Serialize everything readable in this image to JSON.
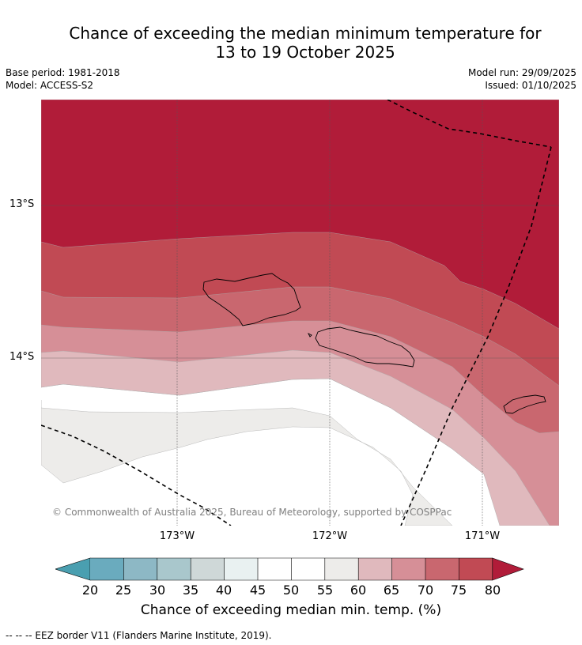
{
  "title": {
    "line1": "Chance of exceeding the median minimum temperature for",
    "line2": "13 to 19 October 2025"
  },
  "meta": {
    "base_period": "Base period: 1981-2018",
    "model": "Model: ACCESS-S2",
    "model_run": "Model run: 29/09/2025",
    "issued": "Issued: 01/10/2025"
  },
  "map": {
    "copyright": "© Commonwealth of Australia 2025, Bureau of Meteorology, supported by COSPPac",
    "lat_labels": [
      "13°S",
      "14°S"
    ],
    "lon_labels": [
      "173°W",
      "172°W",
      "171°W"
    ]
  },
  "colorbar": {
    "ticks": [
      "20",
      "25",
      "30",
      "35",
      "40",
      "45",
      "50",
      "55",
      "60",
      "65",
      "70",
      "75",
      "80"
    ],
    "label": "Chance of exceeding median min. temp. (%)",
    "colors": {
      "under": "#4a9fb0",
      "c20_25": "#6aabbe",
      "c25_30": "#8db8c5",
      "c30_35": "#a9c7cc",
      "c35_40": "#cfd8d8",
      "c40_45": "#e9f1f1",
      "c45_55": "#ffffff",
      "c55_60": "#edecea",
      "c60_65": "#e0b9bd",
      "c65_70": "#d68f97",
      "c70_75": "#c9676f",
      "c75_80": "#c14a54",
      "over": "#b11c39"
    }
  },
  "legend": "--  --  -- EEZ border V11 (Flanders Marine Institute, 2019)."
}
